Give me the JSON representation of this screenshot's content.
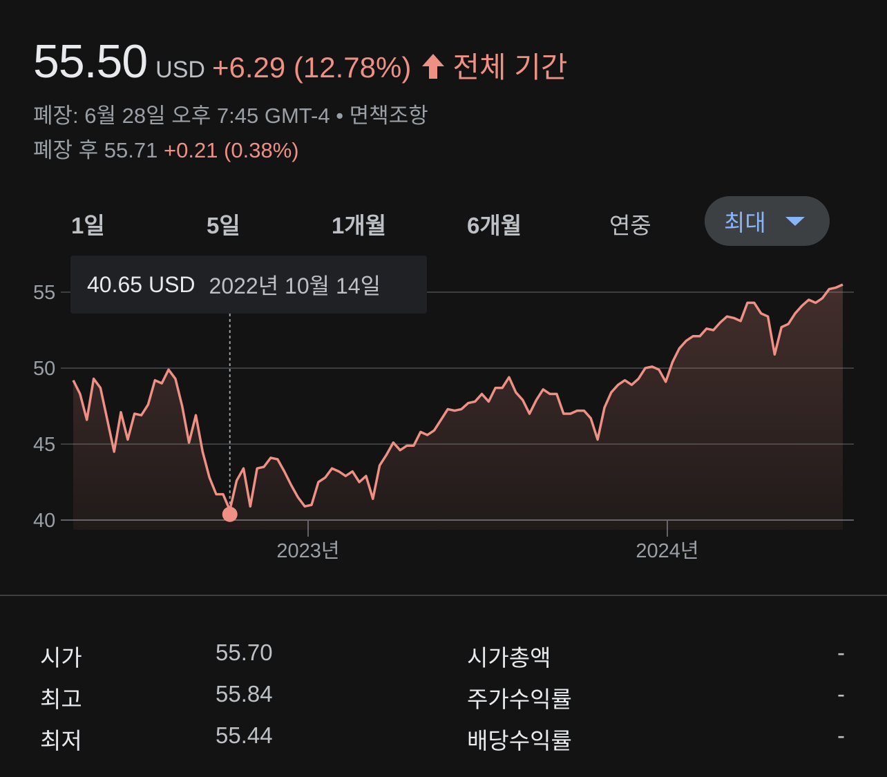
{
  "quote": {
    "price": "55.50",
    "currency": "USD",
    "change": "+6.29 (12.78%)",
    "period": "전체 기간",
    "meta": "폐장: 6월 28일 오후 7:45 GMT-4 • 면책조항",
    "after_hours_label": "폐장 후 55.71",
    "after_hours_change": "+0.21 (0.38%)"
  },
  "ranges": [
    "1일",
    "5일",
    "1개월",
    "6개월",
    "연중",
    "최대"
  ],
  "tooltip": {
    "price": "40.65 USD",
    "date": "2022년 10월 14일"
  },
  "colors": {
    "up": "#ee9084",
    "background": "#131313",
    "selected": "#8ab4f8"
  },
  "chart_data": {
    "type": "area",
    "y_ticks": [
      "55",
      "50",
      "45",
      "40"
    ],
    "x_ticks": [
      "2023년",
      "2024년"
    ],
    "ylim": [
      40,
      56
    ],
    "grid": true,
    "values": [
      49.2,
      48.3,
      46.6,
      49.3,
      48.7,
      46.6,
      44.5,
      47.1,
      45.3,
      47.0,
      46.9,
      47.6,
      49.2,
      49.0,
      49.9,
      49.3,
      47.5,
      45.1,
      46.9,
      44.5,
      42.8,
      41.7,
      41.7,
      40.65,
      42.6,
      43.4,
      40.9,
      43.4,
      43.5,
      44.1,
      44.0,
      43.2,
      42.3,
      41.5,
      40.9,
      41.0,
      42.5,
      42.8,
      43.4,
      43.2,
      42.9,
      43.2,
      42.5,
      42.9,
      41.4,
      43.6,
      44.3,
      45.1,
      44.6,
      44.9,
      44.9,
      45.8,
      45.6,
      45.9,
      46.6,
      47.3,
      47.2,
      47.3,
      47.7,
      47.8,
      48.3,
      47.8,
      48.7,
      48.7,
      49.4,
      48.4,
      47.9,
      47.0,
      47.9,
      48.6,
      48.3,
      48.3,
      47.0,
      47.0,
      47.2,
      47.2,
      46.7,
      45.3,
      47.4,
      48.4,
      48.9,
      49.2,
      48.9,
      49.3,
      50.0,
      50.1,
      49.9,
      49.1,
      50.4,
      51.3,
      51.8,
      52.1,
      52.1,
      52.6,
      52.5,
      53.0,
      53.4,
      53.3,
      53.1,
      54.3,
      54.3,
      53.6,
      53.4,
      50.9,
      52.7,
      52.9,
      53.6,
      54.1,
      54.5,
      54.3,
      54.6,
      55.2,
      55.3,
      55.5
    ]
  },
  "stats": [
    {
      "label": "시가",
      "value": "55.70",
      "label2": "시가총액",
      "value2": "-"
    },
    {
      "label": "최고",
      "value": "55.84",
      "label2": "주가수익률",
      "value2": "-"
    },
    {
      "label": "최저",
      "value": "55.44",
      "label2": "배당수익률",
      "value2": "-"
    }
  ]
}
